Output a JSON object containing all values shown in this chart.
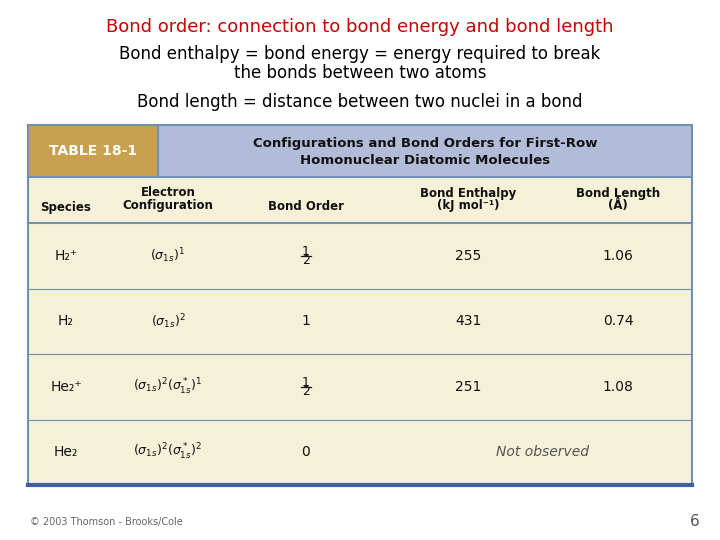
{
  "title": "Bond order: connection to bond energy and bond length",
  "title_color": "#cc0000",
  "title_fontsize": 13,
  "text1_line1": "Bond enthalpy = bond energy = energy required to break",
  "text1_line2": "the bonds between two atoms",
  "text2": "Bond length = distance between two nuclei in a bond",
  "text_fontsize": 12,
  "text_color": "#000000",
  "bg_color": "#ffffff",
  "table_header_left_color": "#c8a050",
  "table_header_right_color": "#b0bcd8",
  "table_body_color": "#f5f0d8",
  "table_border_color": "#7090b0",
  "table_label": "TABLE 18-1",
  "table_title_line1": "Configurations and Bond Orders for First-Row",
  "table_title_line2": "Homonuclear Diatomic Molecules",
  "footer": "© 2003 Thomson - Brooks/Cole",
  "page_number": "6"
}
